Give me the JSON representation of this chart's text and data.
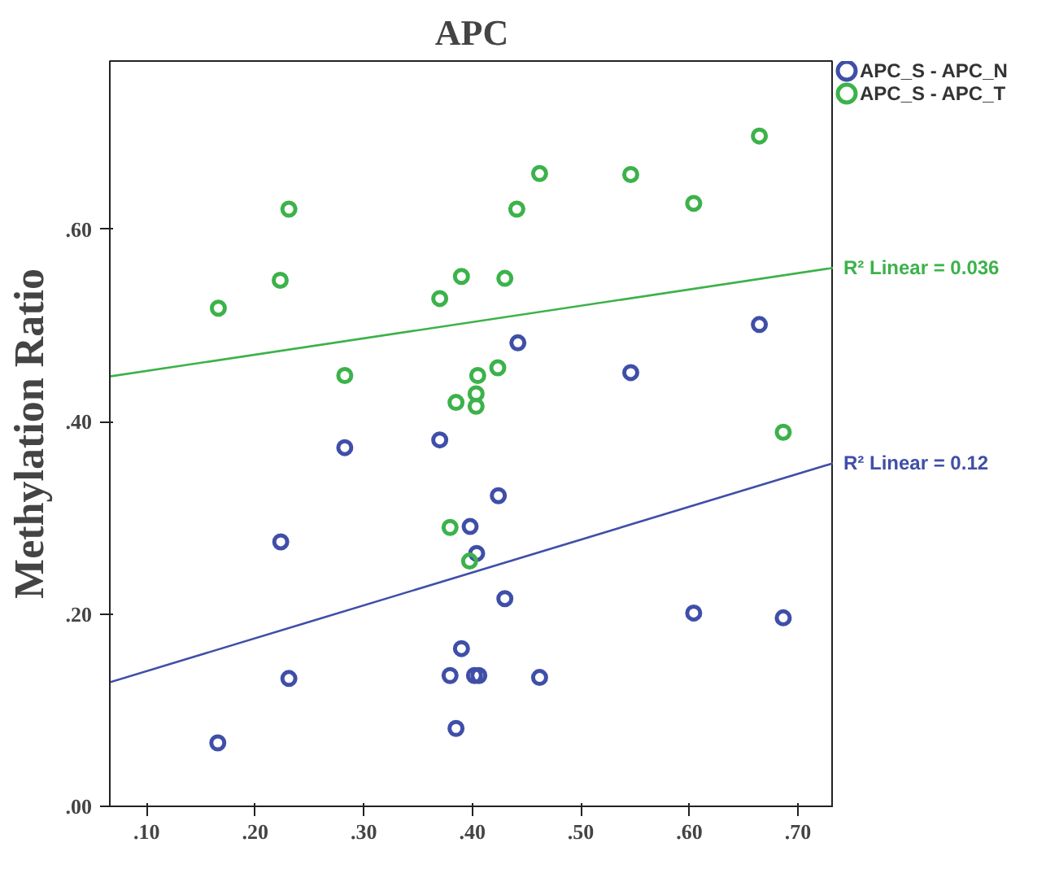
{
  "chart_data": {
    "type": "scatter",
    "title": "APC",
    "ylabel": "Methylation Ratio",
    "xlim": [
      0.066,
      0.733
    ],
    "ylim": [
      0,
      0.775
    ],
    "xticks": [
      {
        "value": 0.1,
        "label": ".10"
      },
      {
        "value": 0.2,
        "label": ".20"
      },
      {
        "value": 0.3,
        "label": ".30"
      },
      {
        "value": 0.4,
        "label": ".40"
      },
      {
        "value": 0.5,
        "label": ".50"
      },
      {
        "value": 0.6,
        "label": ".60"
      },
      {
        "value": 0.7,
        "label": ".70"
      }
    ],
    "yticks": [
      {
        "value": 0,
        "label": ".00"
      },
      {
        "value": 0.2,
        "label": ".20"
      },
      {
        "value": 0.4,
        "label": ".40"
      },
      {
        "value": 0.6,
        "label": ".60"
      }
    ],
    "grid": false,
    "legend": "top right",
    "marker": "circle",
    "series": [
      {
        "name": "APC_S - APC_N",
        "color": "#3f4fa8",
        "x": [
          0.442,
          0.6645,
          0.546,
          0.2825,
          0.37,
          0.2235,
          0.424,
          0.398,
          0.404,
          0.43,
          0.39,
          0.3795,
          0.402,
          0.406,
          0.231,
          0.385,
          0.1655,
          0.462,
          0.604,
          0.6865
        ],
        "values": [
          0.482,
          0.501,
          0.451,
          0.373,
          0.381,
          0.275,
          0.323,
          0.291,
          0.263,
          0.216,
          0.164,
          0.136,
          0.136,
          0.136,
          0.133,
          0.081,
          0.066,
          0.134,
          0.201,
          0.196
        ]
      },
      {
        "name": "APC_S - APC_T",
        "color": "#3cb24a",
        "x": [
          0.231,
          0.166,
          0.223,
          0.37,
          0.39,
          0.43,
          0.2825,
          0.405,
          0.4235,
          0.385,
          0.4035,
          0.4035,
          0.441,
          0.462,
          0.546,
          0.604,
          0.6645,
          0.6865,
          0.3795,
          0.3975
        ],
        "values": [
          0.621,
          0.518,
          0.547,
          0.528,
          0.551,
          0.549,
          0.448,
          0.448,
          0.456,
          0.42,
          0.429,
          0.416,
          0.621,
          0.658,
          0.657,
          0.627,
          0.697,
          0.389,
          0.29,
          0.255
        ]
      },
      {
        "type": "line",
        "marker": "none",
        "color": "#3cb24a",
        "x": [
          0.066,
          0.733
        ],
        "values": [
          0.447,
          0.56
        ]
      },
      {
        "type": "line",
        "marker": "none",
        "color": "#3f4fa8",
        "x": [
          0.066,
          0.733
        ],
        "values": [
          0.129,
          0.357
        ]
      }
    ],
    "annotations": [
      {
        "text": "R² Linear = 0.036",
        "x": 0.733,
        "y": 0.56
      },
      {
        "text": "R² Linear = 0.12",
        "x": 0.733,
        "y": 0.357
      }
    ]
  }
}
